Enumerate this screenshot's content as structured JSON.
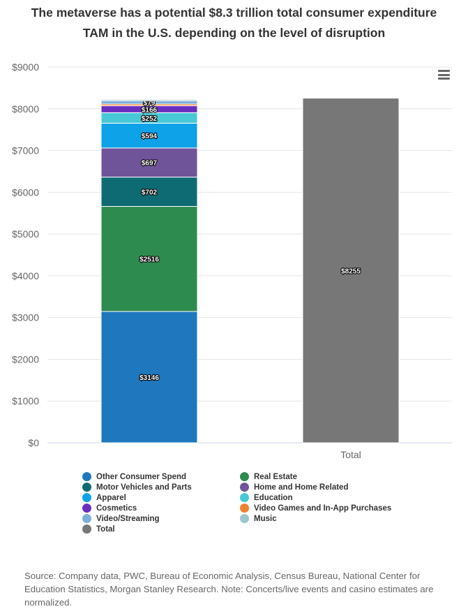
{
  "title_line1": "The metaverse has a potential $8.3 trillion total consumer expenditure",
  "title_line2": "TAM in the U.S. depending on the level of disruption",
  "source": "Source: Company data, PWC, Bureau of Economic Analysis, Census Bureau, National Center for Education Statistics, Morgan Stanley Research. Note: Concerts/live events and casino estimates are normalized.",
  "menu_icon": "hamburger-menu-icon",
  "chart_data": {
    "type": "bar",
    "stacked": true,
    "categories": [
      "",
      "Total"
    ],
    "ylim": [
      0,
      9000
    ],
    "yticks": [
      0,
      1000,
      2000,
      3000,
      4000,
      5000,
      6000,
      7000,
      8000,
      9000
    ],
    "ytick_labels": [
      "$0",
      "$1000",
      "$2000",
      "$3000",
      "$4000",
      "$5000",
      "$6000",
      "$7000",
      "$8000",
      "$9000"
    ],
    "grid": true,
    "legend_position": "bottom",
    "series": [
      {
        "name": "Other Consumer Spend",
        "color": "#1f78be",
        "values": [
          3146,
          null
        ],
        "label": "$3146"
      },
      {
        "name": "Real Estate",
        "color": "#2e8b4f",
        "values": [
          2516,
          null
        ],
        "label": "$2516"
      },
      {
        "name": "Motor Vehicles and Parts",
        "color": "#0f6b73",
        "values": [
          702,
          null
        ],
        "label": "$702"
      },
      {
        "name": "Home and Home Related",
        "color": "#6f5499",
        "values": [
          697,
          null
        ],
        "label": "$697"
      },
      {
        "name": "Apparel",
        "color": "#0ea2e8",
        "values": [
          594,
          null
        ],
        "label": "$594"
      },
      {
        "name": "Education",
        "color": "#47c9d6",
        "values": [
          252,
          null
        ],
        "label": "$252"
      },
      {
        "name": "Cosmetics",
        "color": "#6a2fbf",
        "values": [
          166,
          null
        ],
        "label": "$166"
      },
      {
        "name": "Video Games and In-App Purchases",
        "color": "#f08030",
        "values": [
          40,
          null
        ],
        "label": ""
      },
      {
        "name": "Video/Streaming",
        "color": "#7cafd9",
        "values": [
          79,
          null
        ],
        "label": "$79"
      },
      {
        "name": "Music",
        "color": "#9cc5cc",
        "values": [
          30,
          null
        ],
        "label": ""
      },
      {
        "name": "Total",
        "color": "#777777",
        "values": [
          null,
          8255
        ],
        "label": "$8255"
      }
    ]
  }
}
